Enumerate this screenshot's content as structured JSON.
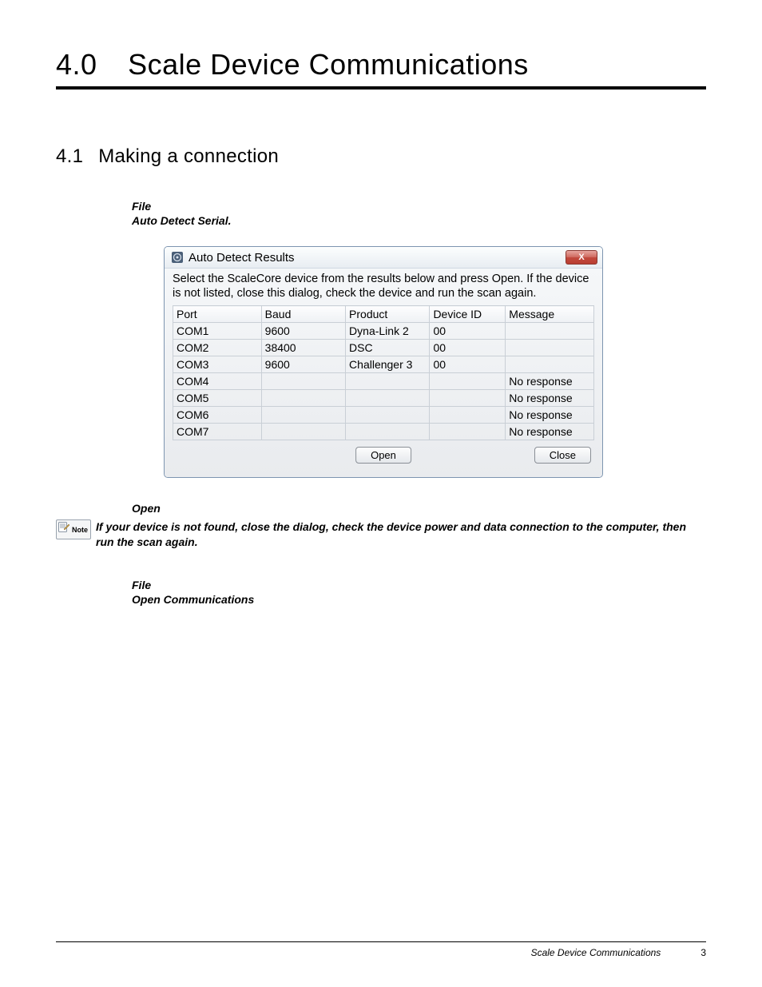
{
  "chapter": {
    "number": "4.0",
    "title": "Scale Device Communications"
  },
  "section": {
    "number": "4.1",
    "title": "Making a connection"
  },
  "step_a": {
    "line1": "File",
    "line2": "Auto Detect Serial."
  },
  "dialog": {
    "title": "Auto Detect Results",
    "close_x": "X",
    "instruction": "Select the ScaleCore device from the results below and press Open. If the device is not listed, close this dialog, check the device and run the scan again.",
    "columns": [
      "Port",
      "Baud",
      "Product",
      "Device ID",
      "Message"
    ],
    "rows": [
      [
        "COM1",
        "9600",
        "Dyna-Link 2",
        "00",
        ""
      ],
      [
        "COM2",
        "38400",
        "DSC",
        "00",
        ""
      ],
      [
        "COM3",
        "9600",
        "Challenger 3",
        "00",
        ""
      ],
      [
        "COM4",
        "",
        "",
        "",
        "No response"
      ],
      [
        "COM5",
        "",
        "",
        "",
        "No response"
      ],
      [
        "COM6",
        "",
        "",
        "",
        "No response"
      ],
      [
        "COM7",
        "",
        "",
        "",
        "No response"
      ]
    ],
    "open_label": "Open",
    "close_label": "Close"
  },
  "open_step": "Open",
  "note": {
    "label": "Note",
    "text": "If your device is not found, close the dialog, check the device power and data connection to the computer, then run the scan again."
  },
  "step_b": {
    "line1": "File",
    "line2": "Open Communications"
  },
  "footer": {
    "section": "Scale Device Communications",
    "page": "3"
  },
  "colors": {
    "close_btn_bg_top": "#e7a59f",
    "close_btn_bg_bottom": "#ba3e32",
    "dialog_border": "#7d95b0",
    "table_border": "#c9cfd6"
  }
}
